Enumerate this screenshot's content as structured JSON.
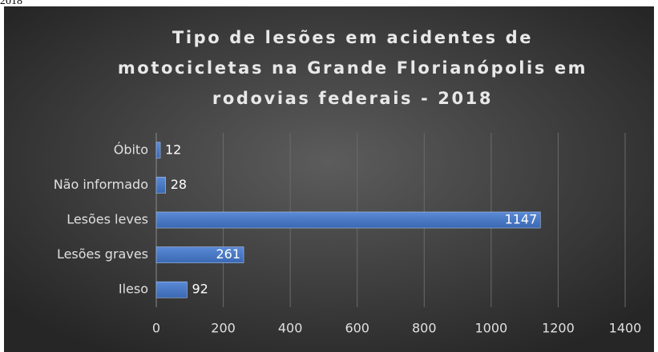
{
  "caption": "2018",
  "chart_data": {
    "type": "hbar",
    "title": [
      "Tipo de lesões em acidentes de",
      "motocicletas na Grande Florianópolis em",
      "rodovias federais - 2018"
    ],
    "categories": [
      "Ileso",
      "Lesões graves",
      "Lesões leves",
      "Não informado",
      "Óbito"
    ],
    "values": [
      92,
      261,
      1147,
      28,
      12
    ],
    "color": "#4a7bc8",
    "xlim": [
      0,
      1400
    ],
    "xticks": [
      0,
      200,
      400,
      600,
      800,
      1000,
      1200,
      1400
    ],
    "grid": true
  }
}
